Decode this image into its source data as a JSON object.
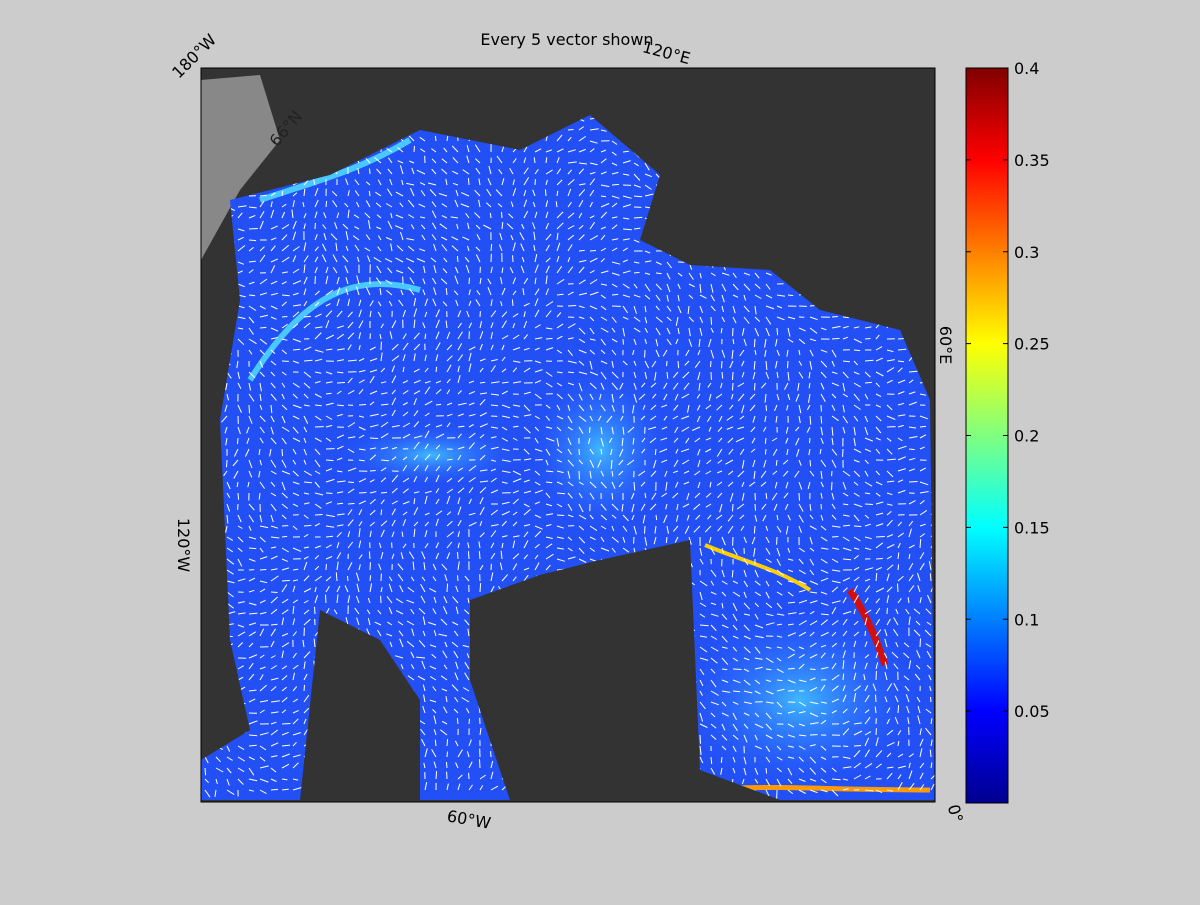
{
  "title": "Every 5 vector shown",
  "map": {
    "labels": [
      "180°W",
      "120°E",
      "60°E",
      "0°",
      "60°W",
      "120°W",
      "66°N"
    ]
  },
  "colorbar": {
    "lim": [
      0,
      0.4
    ],
    "ticks": [
      0.05,
      0.1,
      0.15,
      0.2,
      0.25,
      0.3,
      0.35,
      0.4
    ]
  }
}
